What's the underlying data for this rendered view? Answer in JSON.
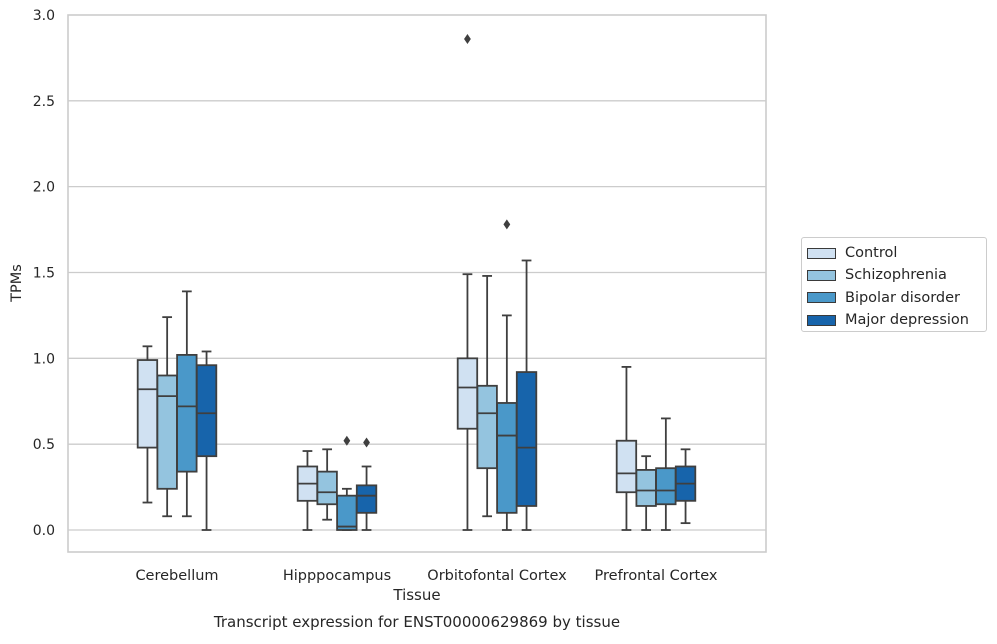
{
  "chart_data": {
    "type": "boxplot",
    "title": "Transcript expression for ENST00000629869 by tissue",
    "xlabel": "Tissue",
    "ylabel": "TPMs",
    "ylim": [
      -0.14,
      3.0
    ],
    "yticks": [
      "0.0",
      "0.5",
      "1.0",
      "1.5",
      "2.0",
      "2.5",
      "3.0"
    ],
    "grid": "horizontal",
    "legend_position": "right",
    "categories": [
      "Cerebellum",
      "Hipppocampus",
      "Orbitofontal Cortex",
      "Prefrontal Cortex"
    ],
    "series": [
      {
        "name": "Control",
        "color": "#d0e1f2",
        "boxes": [
          {
            "whisker_low": 0.16,
            "q1": 0.48,
            "median": 0.82,
            "q3": 0.99,
            "whisker_high": 1.07,
            "outliers": []
          },
          {
            "whisker_low": 0.0,
            "q1": 0.17,
            "median": 0.27,
            "q3": 0.37,
            "whisker_high": 0.46,
            "outliers": []
          },
          {
            "whisker_low": 0.0,
            "q1": 0.59,
            "median": 0.83,
            "q3": 1.0,
            "whisker_high": 1.49,
            "outliers": [
              2.86
            ]
          },
          {
            "whisker_low": 0.0,
            "q1": 0.22,
            "median": 0.33,
            "q3": 0.52,
            "whisker_high": 0.95,
            "outliers": []
          }
        ]
      },
      {
        "name": "Schizophrenia",
        "color": "#94c4df",
        "boxes": [
          {
            "whisker_low": 0.08,
            "q1": 0.24,
            "median": 0.78,
            "q3": 0.9,
            "whisker_high": 1.24,
            "outliers": []
          },
          {
            "whisker_low": 0.06,
            "q1": 0.15,
            "median": 0.22,
            "q3": 0.34,
            "whisker_high": 0.47,
            "outliers": []
          },
          {
            "whisker_low": 0.08,
            "q1": 0.36,
            "median": 0.68,
            "q3": 0.84,
            "whisker_high": 1.48,
            "outliers": []
          },
          {
            "whisker_low": 0.0,
            "q1": 0.14,
            "median": 0.23,
            "q3": 0.35,
            "whisker_high": 0.43,
            "outliers": []
          }
        ]
      },
      {
        "name": "Bipolar disorder",
        "color": "#4a98c9",
        "boxes": [
          {
            "whisker_low": 0.08,
            "q1": 0.34,
            "median": 0.72,
            "q3": 1.02,
            "whisker_high": 1.39,
            "outliers": []
          },
          {
            "whisker_low": 0.0,
            "q1": 0.0,
            "median": 0.02,
            "q3": 0.2,
            "whisker_high": 0.24,
            "outliers": [
              0.52
            ]
          },
          {
            "whisker_low": 0.0,
            "q1": 0.1,
            "median": 0.55,
            "q3": 0.74,
            "whisker_high": 1.25,
            "outliers": [
              1.78
            ]
          },
          {
            "whisker_low": 0.0,
            "q1": 0.15,
            "median": 0.23,
            "q3": 0.36,
            "whisker_high": 0.65,
            "outliers": []
          }
        ]
      },
      {
        "name": "Major depression",
        "color": "#1764ab",
        "boxes": [
          {
            "whisker_low": 0.0,
            "q1": 0.43,
            "median": 0.68,
            "q3": 0.96,
            "whisker_high": 1.04,
            "outliers": []
          },
          {
            "whisker_low": 0.0,
            "q1": 0.1,
            "median": 0.2,
            "q3": 0.26,
            "whisker_high": 0.37,
            "outliers": [
              0.51
            ]
          },
          {
            "whisker_low": 0.0,
            "q1": 0.14,
            "median": 0.48,
            "q3": 0.92,
            "whisker_high": 1.57,
            "outliers": []
          },
          {
            "whisker_low": 0.04,
            "q1": 0.17,
            "median": 0.27,
            "q3": 0.37,
            "whisker_high": 0.47,
            "outliers": []
          }
        ]
      }
    ]
  }
}
